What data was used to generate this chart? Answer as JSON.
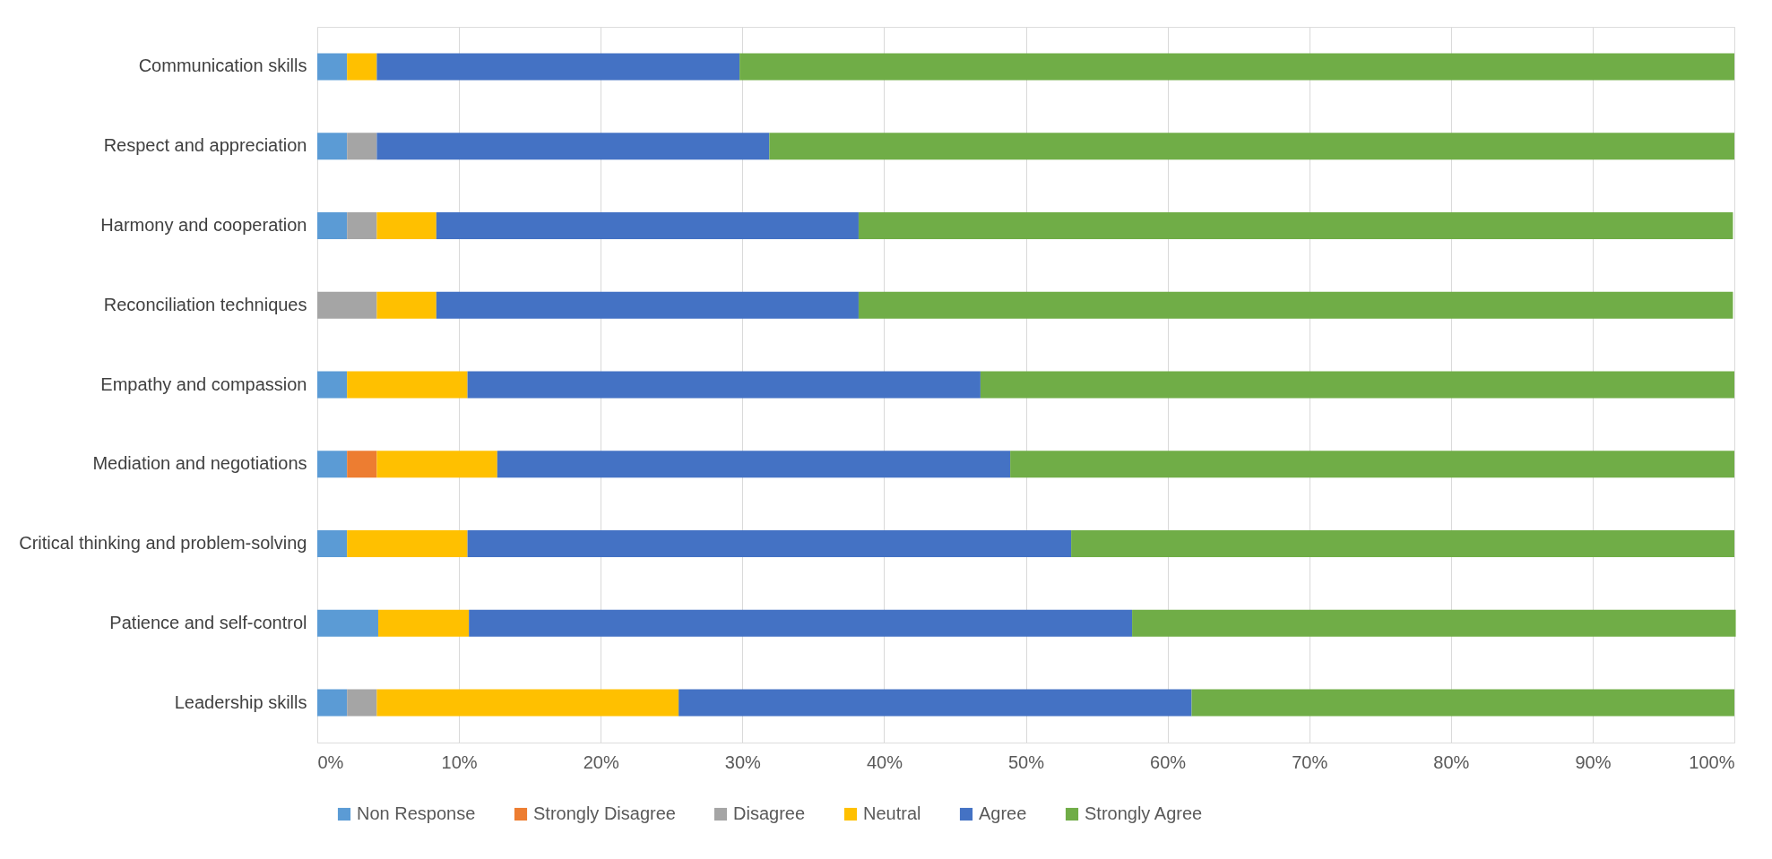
{
  "chart_data": {
    "type": "bar",
    "orientation": "horizontal",
    "stacked": true,
    "categories": [
      "Communication skills",
      "Respect and appreciation",
      "Harmony and cooperation",
      "Reconciliation techniques",
      "Empathy and compassion",
      "Mediation and negotiations",
      "Critical thinking and problem-solving",
      "Patience and self-control",
      "Leadership skills"
    ],
    "series": [
      {
        "name": "Non Response",
        "color": "#5b9bd5",
        "values": [
          2.1,
          2.1,
          2.1,
          0,
          2.1,
          2.1,
          2.1,
          4.3,
          2.1
        ]
      },
      {
        "name": "Strongly Disagree",
        "color": "#ed7d31",
        "values": [
          0,
          0,
          0,
          0,
          0,
          2.1,
          0,
          0,
          0
        ]
      },
      {
        "name": "Disagree",
        "color": "#a5a5a5",
        "values": [
          0,
          2.1,
          2.1,
          4.2,
          0,
          0,
          0,
          0,
          2.1
        ]
      },
      {
        "name": "Neutral",
        "color": "#ffc000",
        "values": [
          2.1,
          0,
          4.2,
          4.2,
          8.5,
          8.5,
          8.5,
          6.4,
          21.3
        ]
      },
      {
        "name": "Agree",
        "color": "#4472c4",
        "values": [
          25.6,
          27.7,
          29.8,
          29.8,
          36.2,
          36.2,
          42.6,
          46.8,
          36.2
        ]
      },
      {
        "name": "Strongly Agree",
        "color": "#70ad47",
        "values": [
          70.2,
          68.1,
          61.7,
          61.7,
          53.2,
          51.1,
          46.8,
          42.6,
          38.3
        ]
      }
    ],
    "xlim": [
      0,
      100
    ],
    "xticks": [
      {
        "value": 0,
        "label": "0%"
      },
      {
        "value": 10,
        "label": "10%"
      },
      {
        "value": 20,
        "label": "20%"
      },
      {
        "value": 30,
        "label": "30%"
      },
      {
        "value": 40,
        "label": "40%"
      },
      {
        "value": 50,
        "label": "50%"
      },
      {
        "value": 60,
        "label": "60%"
      },
      {
        "value": 70,
        "label": "70%"
      },
      {
        "value": 80,
        "label": "80%"
      },
      {
        "value": 90,
        "label": "90%"
      },
      {
        "value": 100,
        "label": "100%"
      }
    ],
    "grid": "x",
    "legend": "bottom"
  }
}
